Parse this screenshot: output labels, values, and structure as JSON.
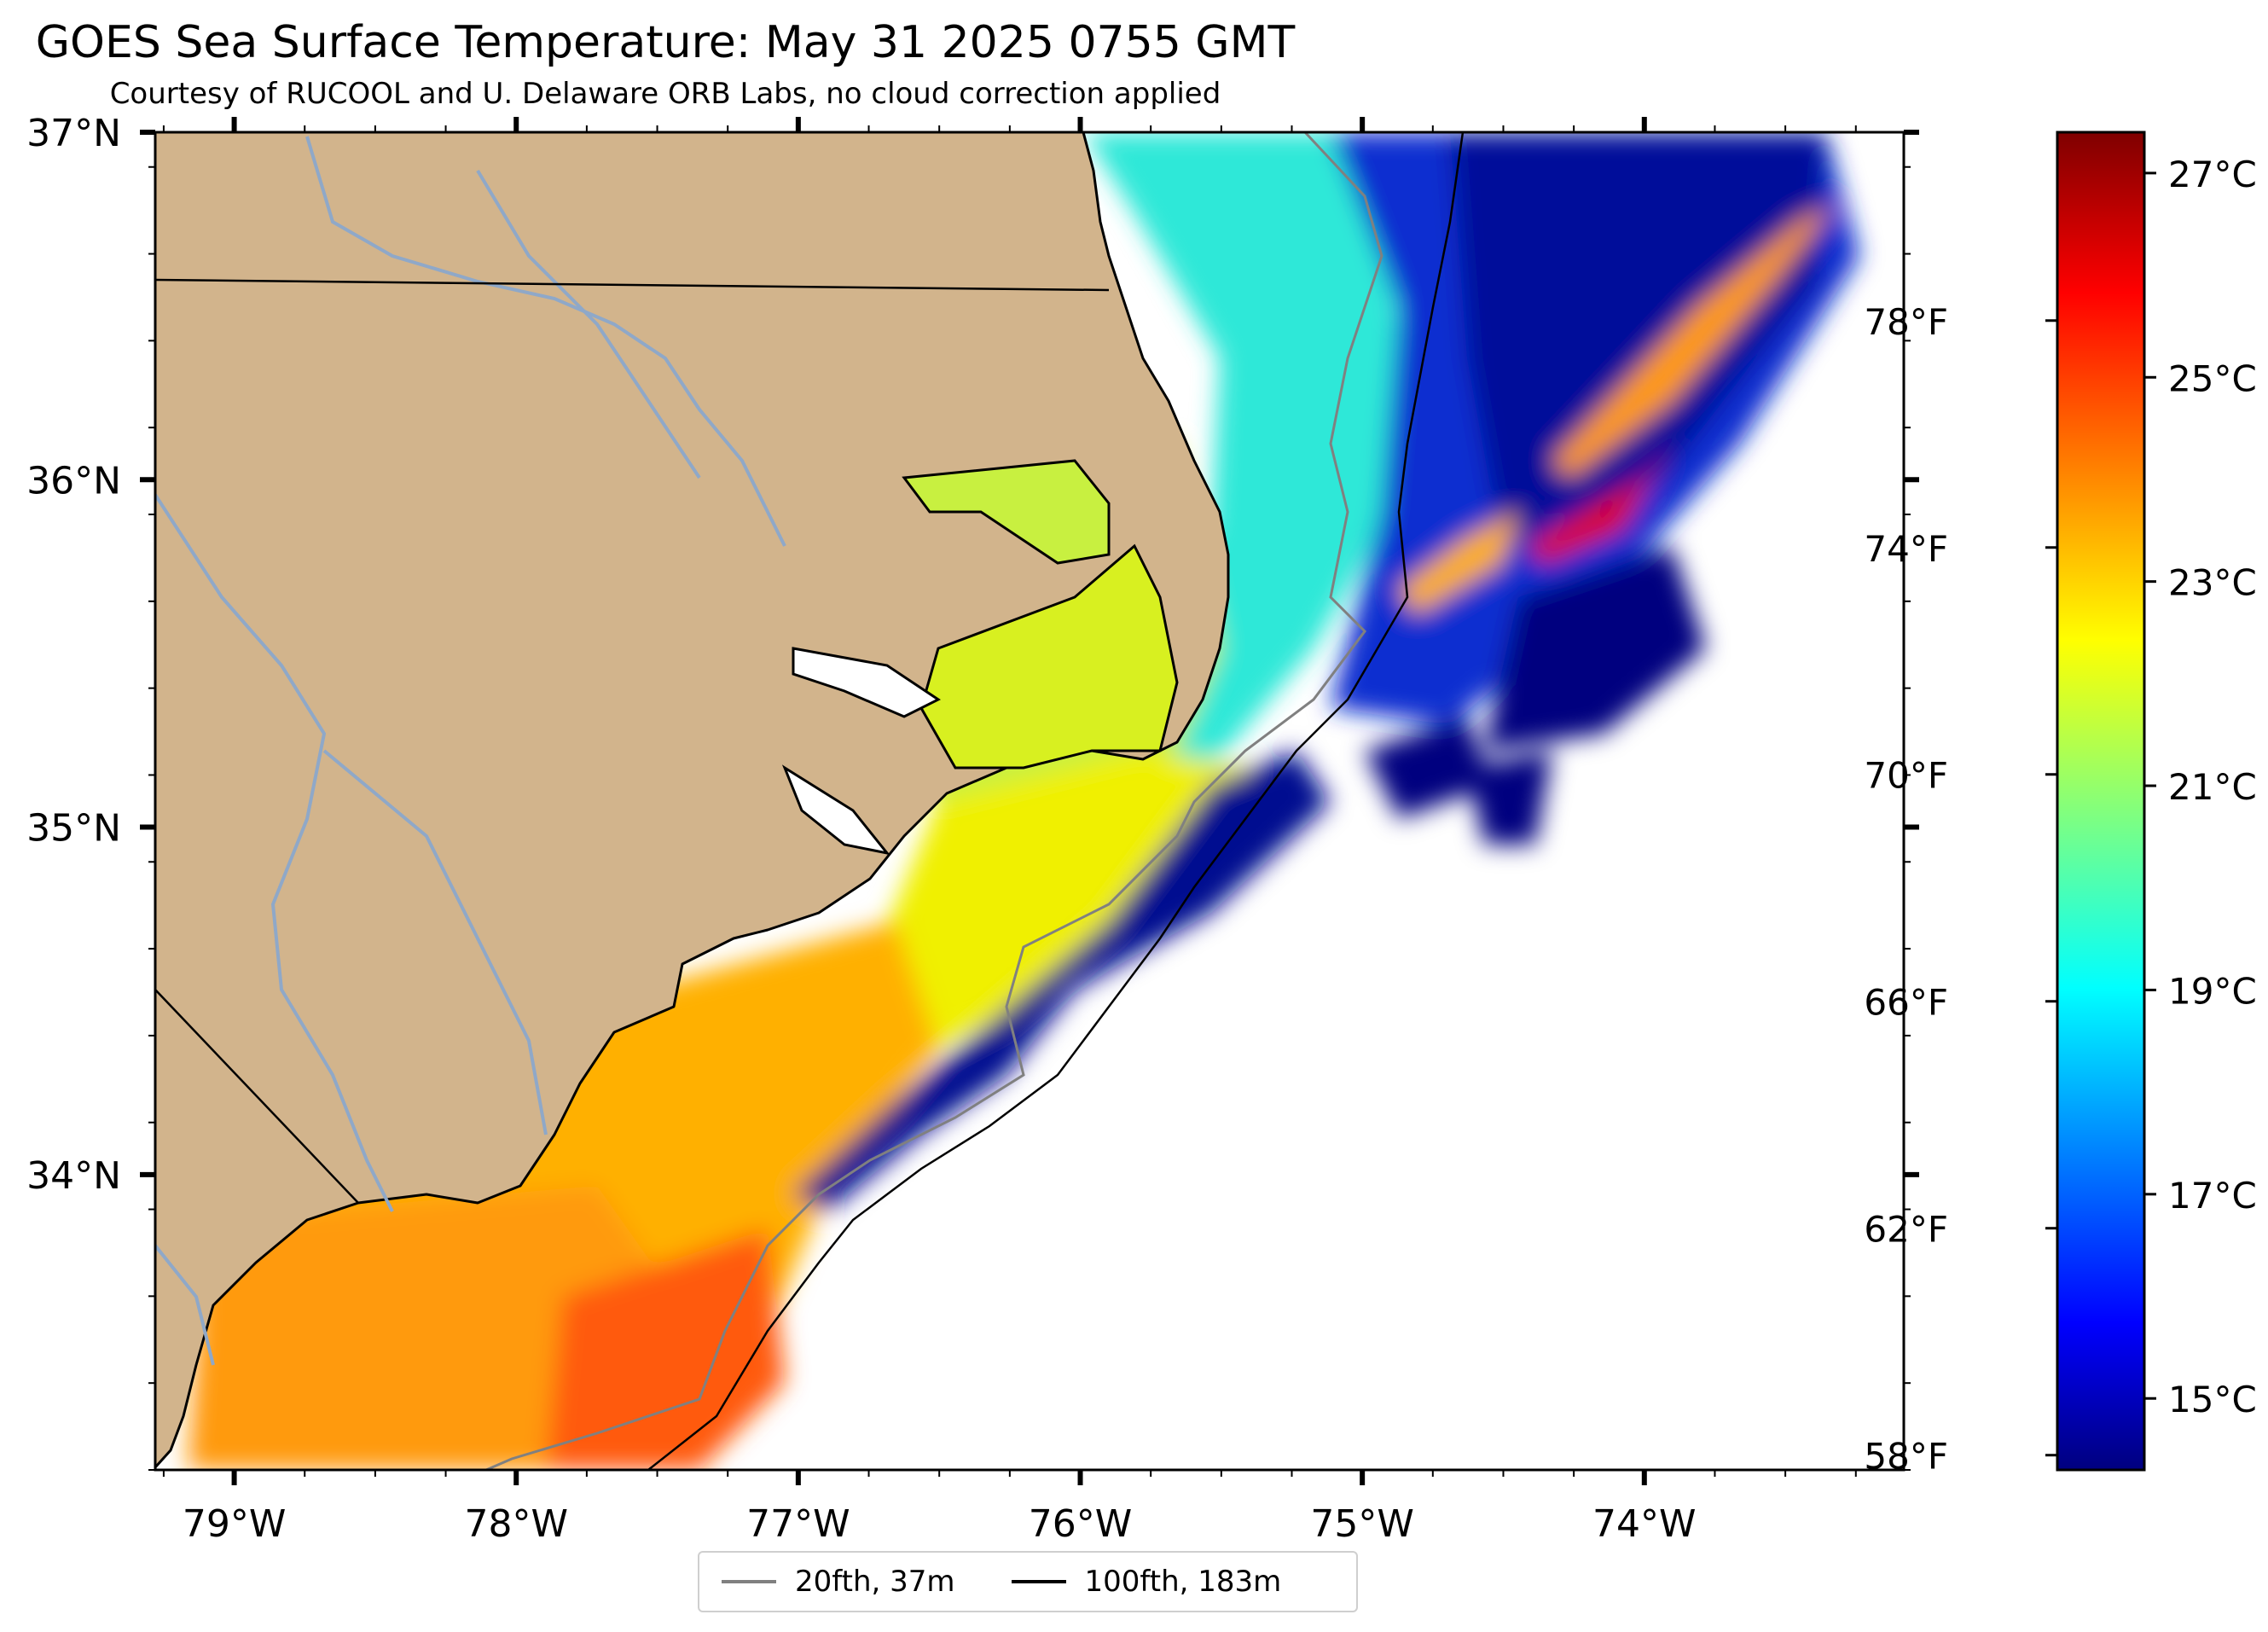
{
  "title": "GOES Sea Surface Temperature: May 31 2025 0755 GMT",
  "subtitle": "Courtesy of RUCOOL and U. Delaware ORB Labs, no cloud correction applied",
  "map": {
    "lat_labels": [
      "37°N",
      "36°N",
      "35°N",
      "34°N"
    ],
    "lon_labels": [
      "79°W",
      "78°W",
      "77°W",
      "76°W",
      "75°W",
      "74°W"
    ],
    "extent": {
      "lon_min": -79.28,
      "lon_max": -73.08,
      "lat_min": 33.15,
      "lat_max": 37.0
    },
    "land_color": "#d2b48c",
    "river_color": "#8fa8c8",
    "no_data_color": "#ffffff"
  },
  "colorbar": {
    "celsius_labels": [
      "27°C",
      "25°C",
      "23°C",
      "21°C",
      "19°C",
      "17°C",
      "15°C"
    ],
    "fahrenheit_labels": [
      "78°F",
      "74°F",
      "70°F",
      "66°F",
      "62°F",
      "58°F"
    ],
    "range_c": [
      14.3,
      27.4
    ],
    "colormap": "jet"
  },
  "legend": {
    "items": [
      {
        "label": "20fth, 37m",
        "color": "#808080"
      },
      {
        "label": "100fth, 183m",
        "color": "#000000"
      }
    ]
  }
}
